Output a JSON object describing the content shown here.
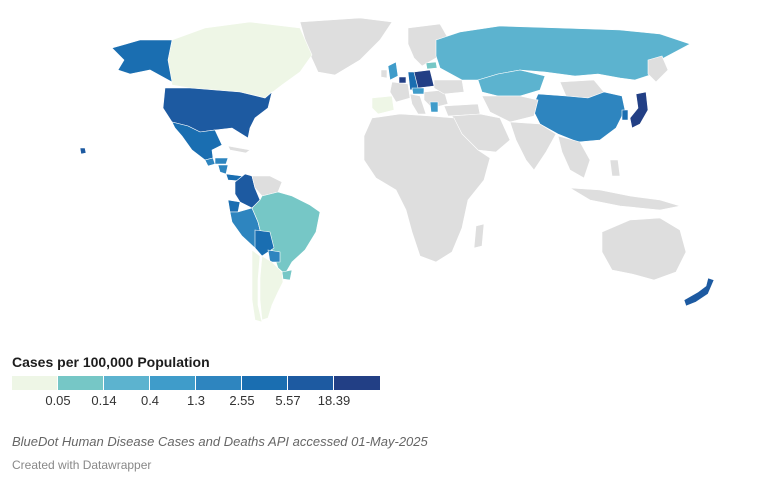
{
  "map": {
    "base_color": "#dedede",
    "regions": [
      {
        "name": "Alaska",
        "bin": 5
      },
      {
        "name": "Canada",
        "bin": 0
      },
      {
        "name": "Greenland",
        "bin": -1
      },
      {
        "name": "United States",
        "bin": 6
      },
      {
        "name": "Hawaii",
        "bin": 6
      },
      {
        "name": "Mexico",
        "bin": 5
      },
      {
        "name": "Guatemala",
        "bin": 4
      },
      {
        "name": "Honduras",
        "bin": 4
      },
      {
        "name": "Nicaragua",
        "bin": 4
      },
      {
        "name": "Panama",
        "bin": 5
      },
      {
        "name": "Colombia",
        "bin": 6
      },
      {
        "name": "Venezuela",
        "bin": -1
      },
      {
        "name": "Ecuador",
        "bin": 5
      },
      {
        "name": "Peru",
        "bin": 4
      },
      {
        "name": "Brazil",
        "bin": 1
      },
      {
        "name": "Bolivia",
        "bin": 5
      },
      {
        "name": "Paraguay",
        "bin": 4
      },
      {
        "name": "Argentina",
        "bin": 0
      },
      {
        "name": "Chile",
        "bin": 0
      },
      {
        "name": "Uruguay",
        "bin": 1
      },
      {
        "name": "Russia",
        "bin": 2
      },
      {
        "name": "Kazakhstan",
        "bin": 2
      },
      {
        "name": "Mongolia",
        "bin": -1
      },
      {
        "name": "China",
        "bin": 4
      },
      {
        "name": "Japan",
        "bin": 7
      },
      {
        "name": "South Korea",
        "bin": 5
      },
      {
        "name": "Poland",
        "bin": 7
      },
      {
        "name": "Germany",
        "bin": 5
      },
      {
        "name": "Czechia",
        "bin": 3
      },
      {
        "name": "United Kingdom",
        "bin": 3
      },
      {
        "name": "Belgium",
        "bin": 7
      },
      {
        "name": "Latvia",
        "bin": 1
      },
      {
        "name": "Spain",
        "bin": 0
      },
      {
        "name": "Greece",
        "bin": 3
      },
      {
        "name": "New Zealand",
        "bin": 6
      }
    ]
  },
  "legend": {
    "title": "Cases per 100,000 Population",
    "colors": [
      "#eef6e6",
      "#76c7c6",
      "#5cb3cf",
      "#3f9cca",
      "#2e85bf",
      "#1a6eb1",
      "#1d5aa1",
      "#223f85"
    ],
    "ticks": [
      "0.05",
      "0.14",
      "0.4",
      "1.3",
      "2.55",
      "5.57",
      "18.39"
    ]
  },
  "source": "BlueDot Human Disease Cases and Deaths API accessed 01-May-2025",
  "credit": "Created with Datawrapper"
}
